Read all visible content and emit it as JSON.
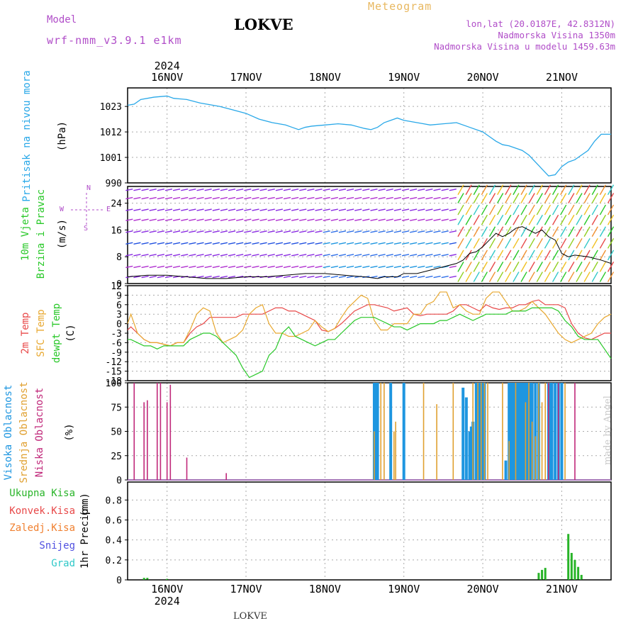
{
  "header": {
    "model_label": "Model",
    "model_name": "wrf-nmm_v3.9.1  e1km",
    "station": "LOKVE",
    "chart_kind": "Meteogram",
    "lonlat": "lon,lat (20.0187E, 42.8312N)",
    "altitude": "Nadmorska Visina 1350m",
    "model_altitude": "Nadmorska Visina u modelu 1459.63m"
  },
  "footer_station": "LOKVE",
  "watermark": "made by Angel",
  "colors": {
    "pressure": "#29a8e8",
    "temp2m": "#e84848",
    "sfc": "#e8a830",
    "dew": "#28c828",
    "high_cloud": "#1e96e0",
    "mid_cloud": "#e0a030",
    "low_cloud": "#c0287a",
    "total_precip": "#28b428",
    "conv_precip": "#e84848",
    "frozen_precip": "#f08030",
    "snow": "#5050e0",
    "graupel": "#30c8c8",
    "wind_axis": "#b04dc8",
    "frame": "#000000"
  },
  "chart_data": [
    {
      "type": "line",
      "name": "Pritisak na nivou mora",
      "top_year": "2024",
      "bottom_year": "2024",
      "x_labels": [
        "16NOV",
        "17NOV",
        "18NOV",
        "19NOV",
        "20NOV",
        "21NOV"
      ],
      "x_label_hours": [
        12,
        36,
        60,
        84,
        108,
        132
      ],
      "xlim_hours": [
        0,
        147
      ],
      "ylabel_title": "Pritisak na nivou mora",
      "ylabel_units": "(hPa)",
      "yticks": [
        990,
        1001,
        1012,
        1023
      ],
      "ylim": [
        990,
        1031
      ],
      "grid": true,
      "series": [
        {
          "name": "Pritisak na nivou mora",
          "x": [
            0,
            2,
            4,
            8,
            12,
            14,
            18,
            22,
            26,
            28,
            32,
            36,
            40,
            44,
            48,
            50,
            52,
            54,
            56,
            60,
            64,
            68,
            72,
            74,
            76,
            78,
            80,
            82,
            84,
            86,
            88,
            90,
            92,
            96,
            100,
            104,
            108,
            110,
            112,
            114,
            116,
            118,
            120,
            122,
            124,
            126,
            128,
            130,
            132,
            134,
            136,
            138,
            140,
            142,
            144,
            147
          ],
          "y": [
            1023.5,
            1024,
            1026,
            1027,
            1027.5,
            1026.5,
            1026,
            1024.5,
            1023.5,
            1023,
            1021.5,
            1020,
            1017.5,
            1016,
            1015,
            1014,
            1013,
            1014,
            1014.5,
            1015,
            1015.5,
            1015,
            1013.5,
            1013,
            1014,
            1016,
            1017,
            1018,
            1017,
            1016.5,
            1016,
            1015.5,
            1015,
            1015.5,
            1016,
            1014,
            1012,
            1010,
            1008,
            1006.5,
            1006,
            1005,
            1004,
            1002,
            999,
            996,
            993,
            993.5,
            997,
            999,
            1000,
            1002,
            1004,
            1008,
            1011,
            1011
          ]
        }
      ]
    },
    {
      "type": "line",
      "name": "10m Vjetar Brzina i Pravac",
      "ylabel_title": "10m Vjetar Brzina i Pravac",
      "ylabel_units": "(m/s)",
      "direction_key": {
        "n": "N",
        "w": "W",
        "e": "E",
        "s": "S"
      },
      "yticks": [
        0,
        8,
        16,
        24
      ],
      "ylim": [
        0,
        29
      ],
      "grid": true,
      "series": [
        {
          "name": "10m Vjetar",
          "x": [
            0,
            6,
            12,
            18,
            24,
            30,
            36,
            42,
            48,
            54,
            60,
            66,
            72,
            76,
            78,
            82,
            84,
            88,
            92,
            96,
            100,
            102,
            104,
            106,
            108,
            110,
            112,
            114,
            116,
            118,
            120,
            122,
            124,
            126,
            128,
            130,
            132,
            134,
            136,
            140,
            144,
            147
          ],
          "y": [
            2,
            2.5,
            2.5,
            2,
            1.5,
            1.5,
            2,
            2,
            2.5,
            3,
            3,
            2.5,
            2,
            1.5,
            2,
            2,
            3,
            3,
            4,
            5,
            6,
            7,
            9,
            9.5,
            11,
            13,
            15,
            14,
            15,
            16.5,
            17,
            16,
            15,
            16,
            14,
            13,
            9,
            8,
            8.5,
            8,
            7,
            6
          ]
        }
      ]
    },
    {
      "type": "line",
      "name": "Temperatures",
      "ylabel_series": [
        "2m Temp",
        "SFC Temp",
        "dewpt Temp"
      ],
      "ylabel_units": "(C)",
      "yticks": [
        -18,
        -15,
        -12,
        -9,
        -6,
        -3,
        0,
        3,
        6,
        9,
        12
      ],
      "ylim": [
        -18,
        12
      ],
      "grid": true,
      "series": [
        {
          "name": "2m Temp",
          "x": [
            0,
            1,
            3,
            5,
            7,
            9,
            11,
            13,
            15,
            17,
            19,
            21,
            23,
            25,
            27,
            29,
            31,
            33,
            35,
            37,
            39,
            41,
            43,
            45,
            47,
            49,
            51,
            53,
            55,
            57,
            59,
            61,
            63,
            65,
            67,
            69,
            71,
            73,
            75,
            77,
            79,
            81,
            83,
            85,
            87,
            89,
            91,
            93,
            95,
            97,
            99,
            101,
            103,
            105,
            107,
            109,
            111,
            113,
            115,
            117,
            119,
            121,
            123,
            125,
            127,
            129,
            131,
            133,
            135,
            137,
            139,
            141,
            143,
            145,
            147
          ],
          "y": [
            -2,
            -1,
            -3,
            -5,
            -6,
            -6,
            -6.5,
            -7,
            -6,
            -6,
            -3,
            -1,
            0,
            2,
            2,
            2,
            2,
            2,
            3,
            3,
            3,
            3,
            4,
            5,
            5,
            4,
            4,
            3,
            2,
            1,
            -2,
            -2.5,
            -1.5,
            0,
            2,
            4,
            5,
            6,
            6,
            5.5,
            5,
            4,
            4.5,
            5,
            3,
            2.5,
            3,
            3,
            3,
            3,
            4,
            6,
            6,
            5,
            4,
            6,
            5,
            4.5,
            5,
            5,
            6,
            6,
            7,
            7.5,
            6,
            6,
            6,
            5,
            0,
            -3,
            -4.5,
            -5,
            -4,
            -3,
            -3
          ]
        },
        {
          "name": "SFC Temp",
          "x": [
            0,
            1,
            3,
            5,
            7,
            9,
            11,
            13,
            15,
            17,
            19,
            21,
            23,
            25,
            27,
            29,
            31,
            33,
            35,
            37,
            39,
            41,
            43,
            45,
            47,
            49,
            51,
            53,
            55,
            57,
            59,
            61,
            63,
            65,
            67,
            69,
            71,
            73,
            75,
            77,
            79,
            81,
            83,
            85,
            87,
            89,
            91,
            93,
            95,
            97,
            99,
            101,
            103,
            105,
            107,
            109,
            111,
            113,
            115,
            117,
            119,
            121,
            123,
            125,
            127,
            129,
            131,
            133,
            135,
            137,
            139,
            141,
            143,
            145,
            147
          ],
          "y": [
            0,
            3,
            -3,
            -5,
            -6,
            -6,
            -6.5,
            -7,
            -6,
            -6,
            -2,
            3,
            5,
            4,
            -3,
            -6,
            -5,
            -4,
            -2,
            3,
            5,
            6,
            0,
            -3,
            -3,
            -4,
            -4,
            -3,
            -2,
            1,
            -1,
            -2.5,
            -1.5,
            2,
            5,
            7,
            9,
            8,
            1,
            -2,
            -2,
            0,
            0,
            0,
            3,
            3,
            6,
            7,
            10,
            10,
            5,
            6,
            4,
            3,
            3,
            8,
            10,
            10,
            7,
            4,
            4,
            5,
            7,
            5,
            3,
            0,
            -3,
            -5,
            -6,
            -5,
            -4,
            -3,
            0,
            2,
            3
          ]
        },
        {
          "name": "dewpt Temp",
          "x": [
            0,
            1,
            3,
            5,
            7,
            9,
            11,
            13,
            15,
            17,
            19,
            21,
            23,
            25,
            27,
            29,
            31,
            33,
            35,
            37,
            39,
            41,
            43,
            45,
            47,
            49,
            51,
            53,
            55,
            57,
            59,
            61,
            63,
            65,
            67,
            69,
            71,
            73,
            75,
            77,
            79,
            81,
            83,
            85,
            87,
            89,
            91,
            93,
            95,
            97,
            99,
            101,
            103,
            105,
            107,
            109,
            111,
            113,
            115,
            117,
            119,
            121,
            123,
            125,
            127,
            129,
            131,
            133,
            135,
            137,
            139,
            141,
            143,
            145,
            147
          ],
          "y": [
            -5,
            -5,
            -6,
            -7,
            -7,
            -8,
            -7,
            -7,
            -7,
            -7,
            -5,
            -4,
            -3,
            -3,
            -4,
            -6,
            -8,
            -10,
            -14,
            -17,
            -16,
            -15,
            -10,
            -8,
            -3,
            -1,
            -4,
            -5,
            -6,
            -7,
            -6,
            -5,
            -5,
            -3,
            -1,
            1,
            2,
            2,
            2,
            1,
            0,
            -1,
            -1,
            -2,
            -1,
            0,
            0,
            0,
            1,
            1,
            2,
            3,
            2,
            1,
            2,
            3,
            3,
            3,
            3,
            4,
            4,
            4,
            5,
            5,
            5,
            5,
            4,
            1,
            -1,
            -4,
            -5,
            -5,
            -5,
            -8,
            -11
          ]
        }
      ]
    },
    {
      "type": "bar",
      "name": "Oblacnost",
      "ylabel_series": [
        "Visoka Oblacnost",
        "Srednja Oblacnost",
        "Niska Oblacnost"
      ],
      "ylabel_units": "(%)",
      "yticks": [
        0,
        25,
        50,
        75,
        100
      ],
      "ylim": [
        0,
        100
      ],
      "grid": true,
      "series": [
        {
          "name": "Visoka Oblacnost",
          "x": [
            75,
            75.5,
            76,
            80,
            84,
            102,
            103,
            104,
            104.5,
            105,
            106,
            106.5,
            107,
            108,
            108.5,
            115,
            116,
            116.5,
            117,
            117.5,
            118,
            118.5,
            119,
            119.5,
            120,
            120.5,
            121,
            121.5,
            122,
            122.5,
            123,
            124,
            125,
            128,
            128.5,
            129,
            130,
            131,
            132
          ],
          "values": [
            100,
            100,
            100,
            100,
            100,
            95,
            85,
            50,
            55,
            60,
            100,
            100,
            100,
            100,
            100,
            20,
            100,
            100,
            100,
            100,
            100,
            100,
            100,
            100,
            100,
            100,
            100,
            100,
            100,
            100,
            100,
            100,
            100,
            100,
            100,
            100,
            100,
            100,
            100
          ]
        },
        {
          "name": "Srednja Oblacnost",
          "x": [
            75,
            77,
            78,
            81,
            81.5,
            90,
            94,
            99,
            105,
            106.5,
            107.5,
            108.5,
            109.5,
            114,
            116,
            118,
            121,
            122,
            123,
            124,
            125,
            126,
            127,
            128,
            133
          ],
          "values": [
            50,
            100,
            100,
            50,
            60,
            100,
            78,
            100,
            100,
            100,
            100,
            100,
            100,
            100,
            40,
            100,
            80,
            100,
            60,
            45,
            100,
            80,
            100,
            100,
            100
          ]
        },
        {
          "name": "Niska Oblacnost",
          "x": [
            2,
            5,
            6,
            9,
            10,
            12,
            13,
            18,
            30,
            128,
            131,
            136
          ],
          "values": [
            100,
            80,
            82,
            100,
            100,
            80,
            98,
            23,
            7,
            100,
            100,
            100
          ]
        }
      ]
    },
    {
      "type": "bar",
      "name": "1hr Precip",
      "ylabel_title": "1hr Precip",
      "ylabel_units": "(mm)",
      "legend": [
        "Ukupna Kisa",
        "Konvek.Kisa",
        "Zaledj.Kisa",
        "Snijeg",
        "Grad"
      ],
      "yticks": [
        0,
        0.2,
        0.4,
        0.6,
        0.8
      ],
      "ylim": [
        0,
        0.98
      ],
      "grid": true,
      "series": [
        {
          "name": "Ukupna Kisa",
          "x": [
            5,
            6,
            12,
            125,
            126,
            127,
            134,
            135,
            136,
            137,
            138
          ],
          "values": [
            0.02,
            0.02,
            0.01,
            0.07,
            0.1,
            0.12,
            0.46,
            0.27,
            0.2,
            0.13,
            0.05
          ]
        }
      ]
    }
  ]
}
